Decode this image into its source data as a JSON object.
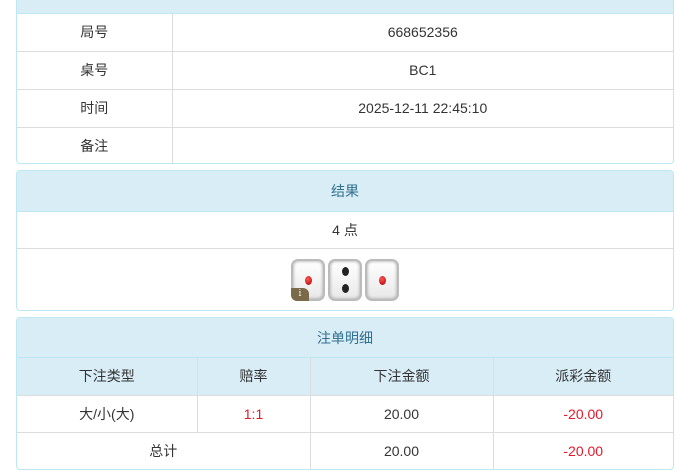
{
  "info": {
    "rows": [
      {
        "label": "局号",
        "value": "668652356"
      },
      {
        "label": "桌号",
        "value": "BC1"
      },
      {
        "label": "时间",
        "value": "2025-12-11 22:45:10"
      },
      {
        "label": "备注",
        "value": ""
      }
    ]
  },
  "result": {
    "title": "结果",
    "points": "4 点",
    "dice": [
      1,
      2,
      1
    ],
    "badge": "i"
  },
  "bets": {
    "title": "注单明细",
    "columns": [
      "下注类型",
      "赔率",
      "下注金额",
      "派彩金额"
    ],
    "rows": [
      {
        "type": "大/小(大)",
        "odds": "1:1",
        "amount": "20.00",
        "payout": "-20.00"
      }
    ],
    "total": {
      "label": "总计",
      "amount": "20.00",
      "payout": "-20.00"
    }
  },
  "colors": {
    "header_bg": "#d9edf7",
    "header_text": "#31708f",
    "negative": "#e4192b"
  }
}
